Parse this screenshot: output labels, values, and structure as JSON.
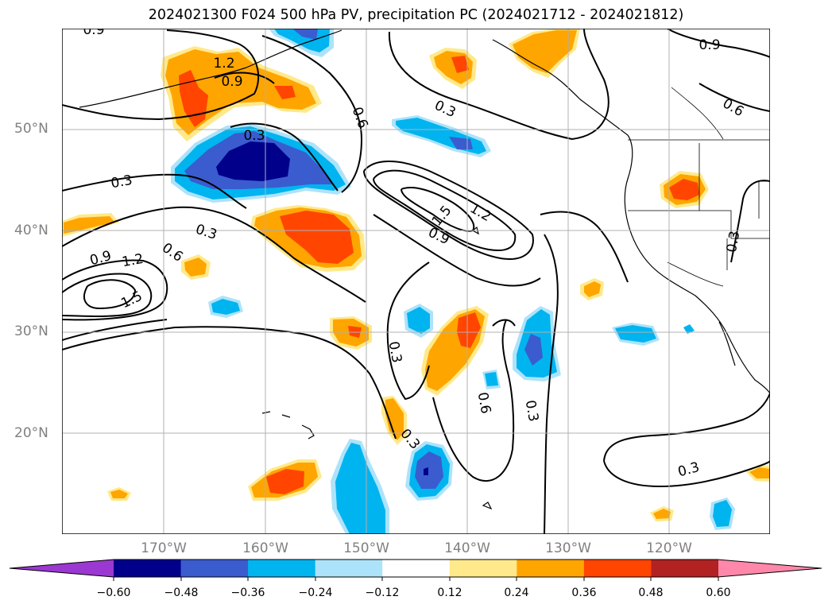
{
  "title": "2024021300 F024 500 hPa PV, precipitation PC (2024021712 - 2024021812)",
  "map": {
    "lat_labels": [
      "50°N",
      "40°N",
      "30°N",
      "20°N"
    ],
    "lon_labels": [
      "170°W",
      "160°W",
      "150°W",
      "140°W",
      "130°W",
      "120°W"
    ],
    "contour_labels": [
      "0.9",
      "1.2",
      "0.9",
      "0.3",
      "0.6",
      "0.3",
      "0.9",
      "0.6",
      "0.3",
      "0.3",
      "1.5",
      "1.2",
      "0.9",
      "0.9",
      "1.2",
      "0.6",
      "1.5",
      "0.3",
      "0.3",
      "0.6",
      "0.3",
      "0.3",
      "0.3"
    ]
  },
  "colorbar": {
    "tick_labels": [
      "−0.60",
      "−0.48",
      "−0.36",
      "−0.24",
      "−0.12",
      "0.12",
      "0.24",
      "0.36",
      "0.48",
      "0.60"
    ],
    "colors": [
      "#9b38d1",
      "#00008b",
      "#3a5ccf",
      "#00b4f0",
      "#ade3fa",
      "#ffffff",
      "#ffe98a",
      "#ffa500",
      "#ff4500",
      "#b22222",
      "#ff88aa"
    ]
  }
}
